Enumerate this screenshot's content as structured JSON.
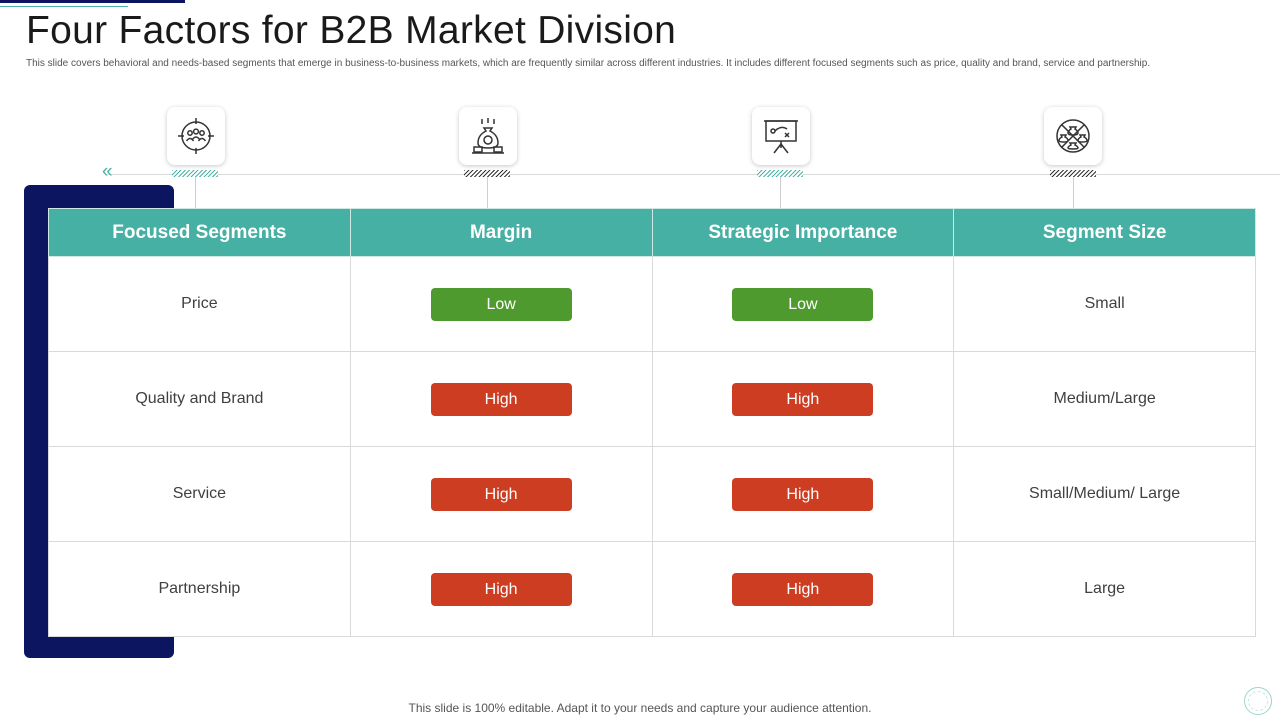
{
  "slide": {
    "title": "Four Factors for B2B Market Division",
    "subtitle": "This slide covers behavioral and needs-based segments that emerge in business-to-business markets, which are frequently similar across different industries. It includes different focused segments such as price, quality and brand, service and partnership.",
    "footer": "This slide is 100% editable. Adapt it to your  needs and capture your audience attention."
  },
  "icons": [
    {
      "name": "target-group-icon"
    },
    {
      "name": "money-bag-stack-icon"
    },
    {
      "name": "strategy-board-icon"
    },
    {
      "name": "segment-circle-icon"
    }
  ],
  "table": {
    "headers": [
      "Focused Segments",
      "Margin",
      "Strategic Importance",
      "Segment Size"
    ],
    "rows": [
      {
        "segment": "Price",
        "margin": "Low",
        "importance": "Low",
        "size": "Small"
      },
      {
        "segment": "Quality and Brand",
        "margin": "High",
        "importance": "High",
        "size": "Medium/Large"
      },
      {
        "segment": "Service",
        "margin": "High",
        "importance": "High",
        "size": "Small/Medium/ Large"
      },
      {
        "segment": "Partnership",
        "margin": "High",
        "importance": "High",
        "size": "Large"
      }
    ]
  },
  "colors": {
    "header_teal": "#45b0a3",
    "navy": "#0b1560",
    "low_green": "#4e9a2f",
    "high_red": "#cc3d22"
  }
}
